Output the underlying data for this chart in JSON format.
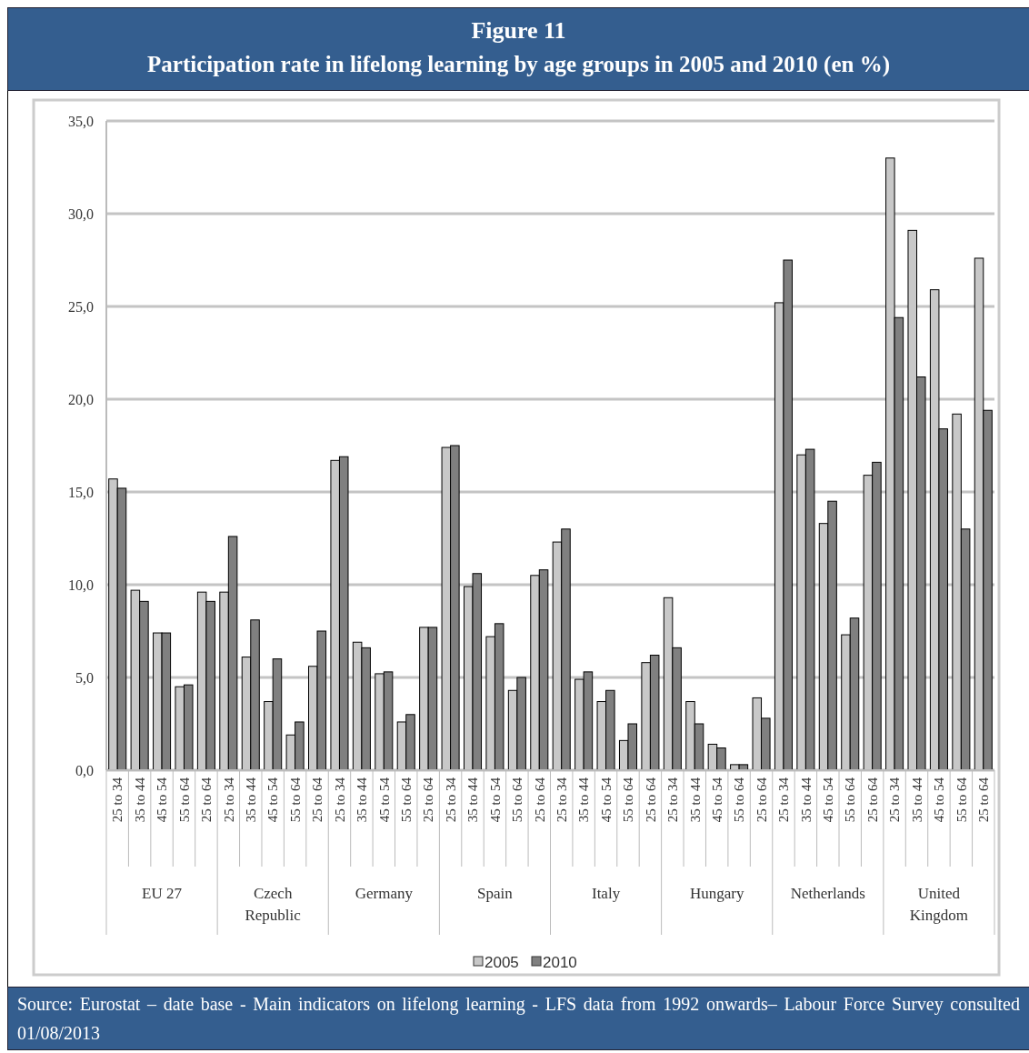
{
  "chart_data": {
    "type": "bar",
    "title": "Figure 11",
    "subtitle": "Participation rate in lifelong learning by age groups in 2005 and 2010 (en %)",
    "categories": [
      "25 to 34",
      "35 to 44",
      "45 to 54",
      "55 to 64",
      "25 to 64",
      "25 to 34",
      "35 to 44",
      "45 to 54",
      "55 to 64",
      "25 to 64",
      "25 to 34",
      "35 to 44",
      "45 to 54",
      "55 to 64",
      "25 to 64",
      "25 to 34",
      "35 to 44",
      "45 to 54",
      "55 to 64",
      "25 to 64",
      "25 to 34",
      "35 to 44",
      "45 to 54",
      "55 to 64",
      "25 to 64",
      "25 to 34",
      "35 to 44",
      "45 to 54",
      "55 to 64",
      "25 to 64",
      "25 to 34",
      "35 to 44",
      "45 to 54",
      "55 to 64",
      "25 to 64",
      "25 to 34",
      "35 to 44",
      "45 to 54",
      "55 to 64",
      "25 to 64"
    ],
    "series": [
      {
        "name": "2005",
        "color": "#c8c8c8",
        "values": [
          15.7,
          9.7,
          7.4,
          4.5,
          9.6,
          9.6,
          6.1,
          3.7,
          1.9,
          5.6,
          16.7,
          6.9,
          5.2,
          2.6,
          7.7,
          17.4,
          9.9,
          7.2,
          4.3,
          10.5,
          12.3,
          4.9,
          3.7,
          1.6,
          5.8,
          9.3,
          3.7,
          1.4,
          0.3,
          3.9,
          25.2,
          17.0,
          13.3,
          7.3,
          15.9,
          33.0,
          29.1,
          25.9,
          19.2,
          27.6
        ]
      },
      {
        "name": "2010",
        "color": "#808080",
        "values": [
          15.2,
          9.1,
          7.4,
          4.6,
          9.1,
          12.6,
          8.1,
          6.0,
          2.6,
          7.5,
          16.9,
          6.6,
          5.3,
          3.0,
          7.7,
          17.5,
          10.6,
          7.9,
          5.0,
          10.8,
          13.0,
          5.3,
          4.3,
          2.5,
          6.2,
          6.6,
          2.5,
          1.2,
          0.3,
          2.8,
          27.5,
          17.3,
          14.5,
          8.2,
          16.6,
          24.4,
          21.2,
          18.4,
          13.0,
          19.4
        ]
      }
    ],
    "ylim": [
      0,
      35
    ],
    "yticks": [
      {
        "value": 0,
        "label": "0,0"
      },
      {
        "value": 5,
        "label": "5,0"
      },
      {
        "value": 10,
        "label": "10,0"
      },
      {
        "value": 15,
        "label": "15,0"
      },
      {
        "value": 20,
        "label": "20,0"
      },
      {
        "value": 25,
        "label": "25,0"
      },
      {
        "value": 30,
        "label": "30,0"
      },
      {
        "value": 35,
        "label": "35,0"
      }
    ],
    "grid": "y",
    "legend": "bottom",
    "annotations": [
      "EU 27",
      "Czech Republic",
      "Germany",
      "Spain",
      "Italy",
      "Hungary",
      "Netherlands",
      "United Kingdom",
      "Source: Eurostat – date base - Main indicators on lifelong learning - LFS data from 1992 onwards– Labour Force Survey consulted 01/08/2013"
    ]
  }
}
